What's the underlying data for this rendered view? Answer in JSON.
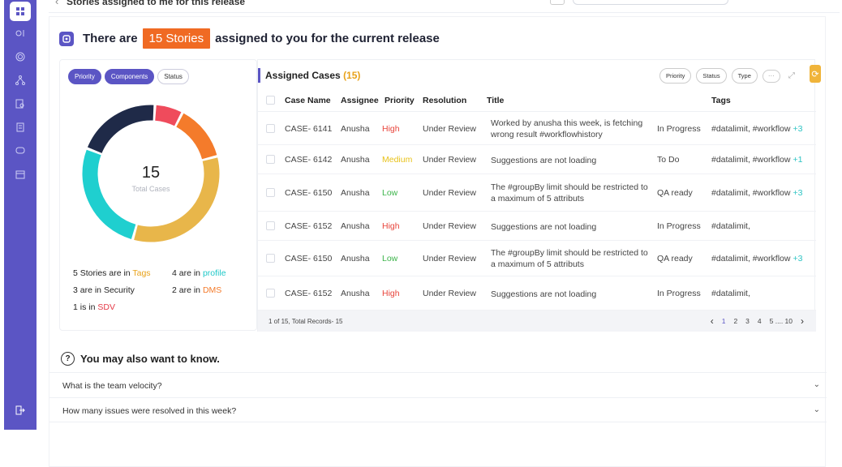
{
  "header": {
    "title": "Stories assigned to me for this release"
  },
  "headline": {
    "prefix": "There are",
    "badge": "15 Stories",
    "suffix": "assigned to you for the current release"
  },
  "left": {
    "pills": [
      {
        "label": "Priority",
        "active": true
      },
      {
        "label": "Components",
        "active": true
      },
      {
        "label": "Status",
        "active": false
      }
    ],
    "donut": {
      "total": "15",
      "label": "Total Cases",
      "segments": [
        {
          "name": "SDV",
          "value": 1,
          "color": "#ef4b5c"
        },
        {
          "name": "DMS",
          "value": 2,
          "color": "#f47b2b"
        },
        {
          "name": "Tags",
          "value": 5,
          "color": "#e8b64a"
        },
        {
          "name": "profile",
          "value": 4,
          "color": "#1fcfcf"
        },
        {
          "name": "Security",
          "value": 3,
          "color": "#1f2a48"
        }
      ]
    },
    "stats": [
      {
        "pre": "5 Stories are in ",
        "hl": "Tags",
        "color": "#e8a21a"
      },
      {
        "pre": "4 are in ",
        "hl": "profile",
        "color": "#1fc8c8"
      },
      {
        "pre": "3 are in Security",
        "hl": "",
        "color": "#222"
      },
      {
        "pre": "2 are in ",
        "hl": "DMS",
        "color": "#f47b2b"
      },
      {
        "pre": "1 is in ",
        "hl": "SDV",
        "color": "#e53946"
      }
    ]
  },
  "table": {
    "title": "Assigned Cases",
    "count": "(15)",
    "filters": [
      "Priority",
      "Status",
      "Type"
    ],
    "more": "···",
    "columns": [
      "Case Name",
      "Assignee",
      "Priority",
      "Resolution",
      "Title",
      "Tags"
    ],
    "rows": [
      {
        "case": "CASE- 6141",
        "assignee": "Anusha",
        "priority": "High",
        "pcolor": "#e8453c",
        "resolution": "Under Review",
        "title": "Worked by anusha this week, is fetching wrong result #workflowhistory",
        "status": "In Progress",
        "tags": "#datalimit, #workflow",
        "more": "+3"
      },
      {
        "case": "CASE- 6142",
        "assignee": "Anusha",
        "priority": "Medium",
        "pcolor": "#e8c21a",
        "resolution": "Under Review",
        "title": "Suggestions are not loading",
        "status": "To Do",
        "tags": "#datalimit, #workflow",
        "more": "+1"
      },
      {
        "case": "CASE- 6150",
        "assignee": "Anusha",
        "priority": "Low",
        "pcolor": "#3cb44a",
        "resolution": "Under Review",
        "title": "The #groupBy limit should be restricted to a maximum of 5 attributs",
        "status": "QA ready",
        "tags": "#datalimit, #workflow",
        "more": "+3"
      },
      {
        "case": "CASE- 6152",
        "assignee": "Anusha",
        "priority": "High",
        "pcolor": "#e8453c",
        "resolution": "Under Review",
        "title": "Suggestions are not loading",
        "status": "In Progress",
        "tags": "#datalimit,",
        "more": ""
      },
      {
        "case": "CASE- 6150",
        "assignee": "Anusha",
        "priority": "Low",
        "pcolor": "#3cb44a",
        "resolution": "Under Review",
        "title": "The #groupBy limit should be restricted to a maximum of 5 attributs",
        "status": "QA ready",
        "tags": "#datalimit, #workflow",
        "more": "+3"
      },
      {
        "case": "CASE- 6152",
        "assignee": "Anusha",
        "priority": "High",
        "pcolor": "#e8453c",
        "resolution": "Under Review",
        "title": "Suggestions are not loading",
        "status": "In Progress",
        "tags": "#datalimit,",
        "more": ""
      }
    ],
    "footer": "1 of 15, Total Records- 15",
    "pages": [
      "1",
      "2",
      "3",
      "4",
      "5 .... 10"
    ]
  },
  "faq": {
    "heading": "You may also want to know.",
    "items": [
      "What is the team velocity?",
      "How many issues were resolved in this week?"
    ]
  }
}
